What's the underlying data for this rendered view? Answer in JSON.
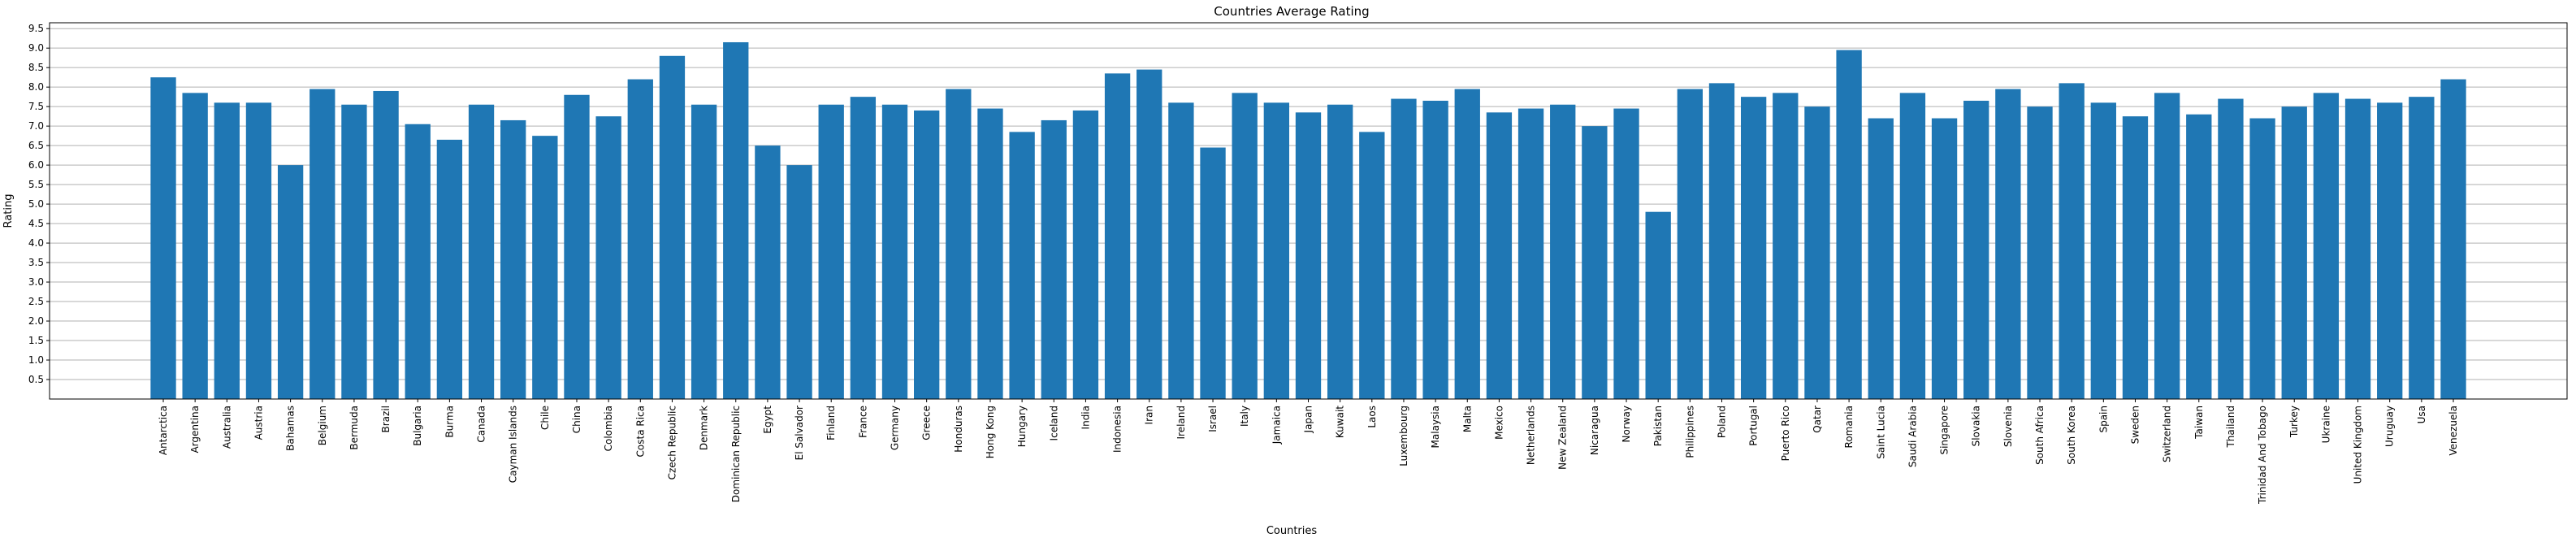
{
  "chart_data": {
    "type": "bar",
    "title": "Countries Average Rating",
    "xlabel": "Countries",
    "ylabel": "Rating",
    "ylim": [
      0,
      9.65
    ],
    "yticks": [
      0.5,
      1.0,
      1.5,
      2.0,
      2.5,
      3.0,
      3.5,
      4.0,
      4.5,
      5.0,
      5.5,
      6.0,
      6.5,
      7.0,
      7.5,
      8.0,
      8.5,
      9.0,
      9.5
    ],
    "grid": "horizontal",
    "bar_color": "#1f77b4",
    "categories": [
      "Antarctica",
      "Argentina",
      "Australia",
      "Austria",
      "Bahamas",
      "Belgium",
      "Bermuda",
      "Brazil",
      "Bulgaria",
      "Burma",
      "Canada",
      "Cayman Islands",
      "Chile",
      "China",
      "Colombia",
      "Costa Rica",
      "Czech Republic",
      "Denmark",
      "Dominican Republic",
      "Egypt",
      "El Salvador",
      "Finland",
      "France",
      "Germany",
      "Greece",
      "Honduras",
      "Hong Kong",
      "Hungary",
      "Iceland",
      "India",
      "Indonesia",
      "Iran",
      "Ireland",
      "Israel",
      "Italy",
      "Jamaica",
      "Japan",
      "Kuwait",
      "Laos",
      "Luxembourg",
      "Malaysia",
      "Malta",
      "Mexico",
      "Netherlands",
      "New Zealand",
      "Nicaragua",
      "Norway",
      "Pakistan",
      "Philippines",
      "Poland",
      "Portugal",
      "Puerto Rico",
      "Qatar",
      "Romania",
      "Saint Lucia",
      "Saudi Arabia",
      "Singapore",
      "Slovakia",
      "Slovenia",
      "South Africa",
      "South Korea",
      "Spain",
      "Sweden",
      "Switzerland",
      "Taiwan",
      "Thailand",
      "Trinidad And Tobago",
      "Turkey",
      "Ukraine",
      "United Kingdom",
      "Uruguay",
      "Usa",
      "Venezuela"
    ],
    "values": [
      8.25,
      7.85,
      7.6,
      7.6,
      6.0,
      7.95,
      7.55,
      7.9,
      7.05,
      6.65,
      7.55,
      7.15,
      6.75,
      7.8,
      7.25,
      8.2,
      8.8,
      7.55,
      9.15,
      6.5,
      6.0,
      7.55,
      7.75,
      7.55,
      7.4,
      7.95,
      7.45,
      6.85,
      7.15,
      7.4,
      8.35,
      8.45,
      7.6,
      6.45,
      7.85,
      7.6,
      7.35,
      7.55,
      6.85,
      7.7,
      7.65,
      7.95,
      7.35,
      7.45,
      7.55,
      7.0,
      7.45,
      4.8,
      7.95,
      8.1,
      7.75,
      7.85,
      7.5,
      8.95,
      7.2,
      7.85,
      7.2,
      7.65,
      7.95,
      7.5,
      8.1,
      7.6,
      7.25,
      7.85,
      7.3,
      7.7,
      7.2,
      7.5,
      7.85,
      7.7,
      7.6,
      7.75,
      8.2
    ]
  }
}
